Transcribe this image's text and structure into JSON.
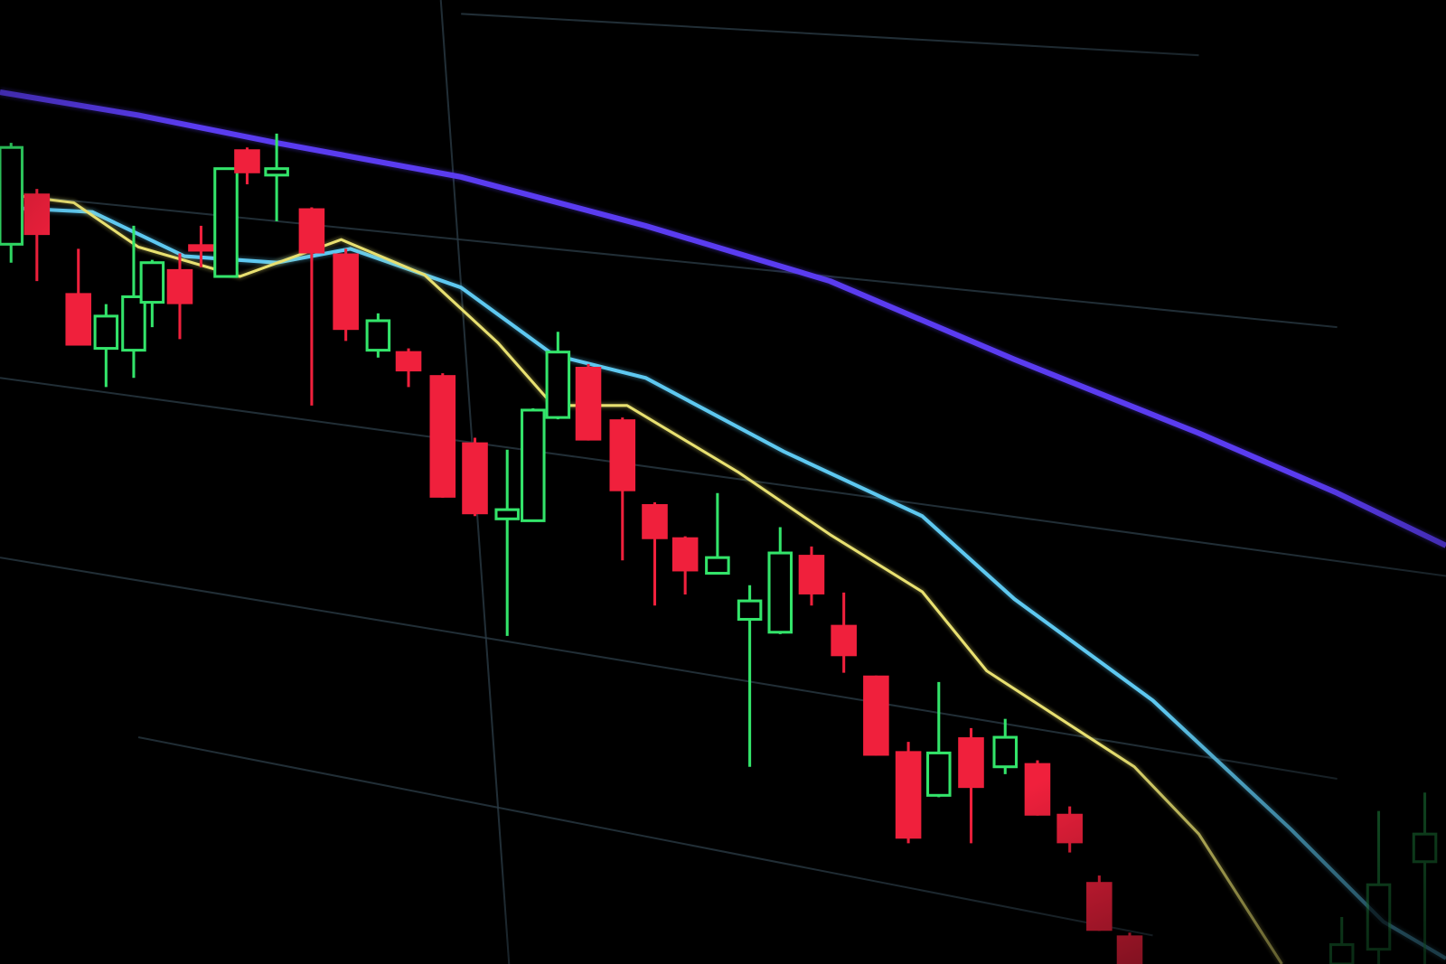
{
  "scene": {
    "description_type": "photo-of-candlestick-chart-screen",
    "colors": {
      "background": "#000000",
      "bullish": "#33e46a",
      "bearish": "#f0203c",
      "ma_slow": "#5a3cf0",
      "ma_mid": "#5ec8f0",
      "ma_fast": "#e8e070",
      "grid": "#2a3a44"
    }
  }
}
